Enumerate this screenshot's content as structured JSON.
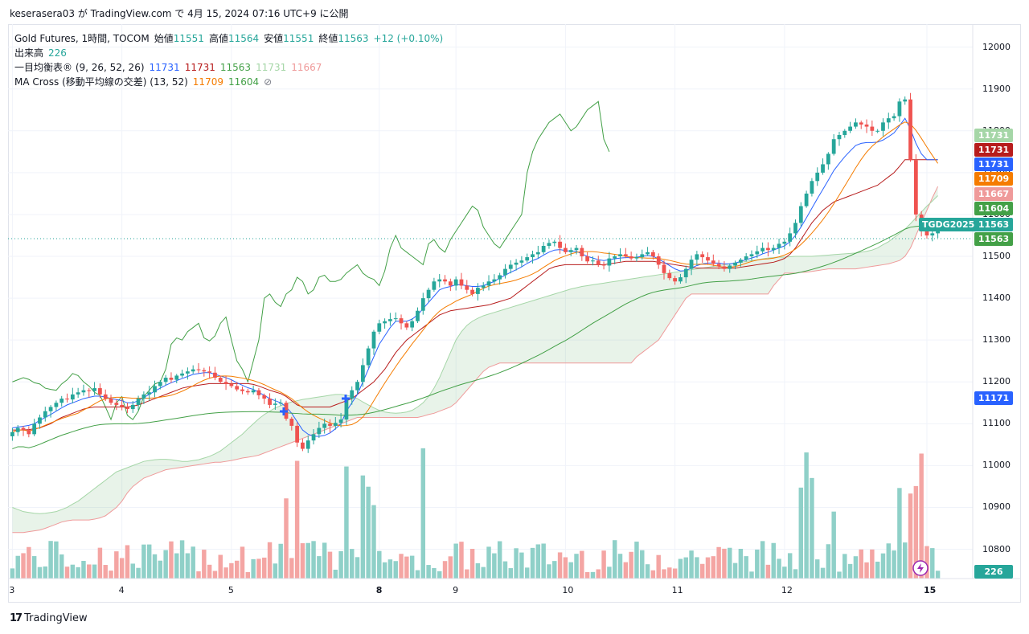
{
  "header": {
    "text": "keserasera03 が TradingView.com で 4月 15, 2024 07:16 UTC+9 に公開"
  },
  "legend": {
    "symbol": "Gold Futures, 1時間, TOCOM",
    "open_label": "始値",
    "open": "11551",
    "high_label": "高値",
    "high": "11564",
    "low_label": "安値",
    "low": "11551",
    "close_label": "終値",
    "close": "11563",
    "change": "+12 (+0.10%)",
    "volume_label": "出来高",
    "volume": "226",
    "ichimoku_label": "一目均衡表® (9, 26, 52, 26)",
    "ichimoku_values": [
      "11731",
      "11731",
      "11563",
      "11731",
      "11667"
    ],
    "ma_label": "MA Cross (移動平均線の交差) (13, 52)",
    "ma_values": [
      "11709",
      "11604"
    ],
    "ma_icon": "⊘"
  },
  "price_tags": [
    {
      "value": "11731",
      "color": "#a5d6a7",
      "name": "chikou-span"
    },
    {
      "value": "11731",
      "color": "#b71c1c",
      "name": "kijun-sen"
    },
    {
      "value": "11731",
      "color": "#2962ff",
      "name": "tenkan-sen"
    },
    {
      "value": "11709",
      "color": "#f57c00",
      "name": "ma-fast"
    },
    {
      "value": "11667",
      "color": "#ef9a9a",
      "name": "senkou-span-b"
    },
    {
      "value": "11604",
      "color": "#43a047",
      "name": "ma-slow"
    },
    {
      "value": "11563",
      "color": "#26a69a",
      "name": "last-price"
    },
    {
      "value": "11563",
      "color": "#43a047",
      "name": "senkou-span-a"
    },
    {
      "value": "11171",
      "color": "#2962ff",
      "name": "cross-marker"
    }
  ],
  "volume_tag": "226",
  "symbol_label": "TGDG2025",
  "footer": {
    "brand": "TradingView",
    "logo_icon": "17"
  },
  "colors": {
    "up": "#26a69a",
    "down": "#ef5350",
    "vol_up": "#8fd0c8",
    "vol_down": "#f4a5a3",
    "tenkan": "#2962ff",
    "kijun": "#b71c1c",
    "span_a": "#43a047",
    "span_b": "#ef9a9a",
    "chikou": "#43a047",
    "ma_fast": "#f57c00",
    "ma_slow": "#43a047"
  },
  "chart_data": {
    "type": "candlestick",
    "title": "Gold Futures, 1時間, TOCOM",
    "y_ticks": [
      12000,
      11900,
      11800,
      11700,
      11600,
      11500,
      11400,
      11300,
      11200,
      11100,
      11000,
      10900,
      10800
    ],
    "ylim": [
      10730,
      12055
    ],
    "x_tick_labels": [
      "3",
      "4",
      "5",
      "8",
      "9",
      "10",
      "11",
      "12",
      "15"
    ],
    "x_tick_bar_index": [
      0,
      20,
      40,
      67,
      81,
      101,
      121,
      141,
      167
    ],
    "bar_count": 170,
    "grid": true,
    "close": [
      11080,
      11090,
      11085,
      11075,
      11100,
      11115,
      11130,
      11140,
      11150,
      11160,
      11158,
      11170,
      11175,
      11180,
      11178,
      11185,
      11170,
      11160,
      11150,
      11145,
      11140,
      11135,
      11145,
      11160,
      11170,
      11175,
      11190,
      11200,
      11210,
      11205,
      11215,
      11220,
      11225,
      11230,
      11228,
      11225,
      11222,
      11210,
      11200,
      11195,
      11190,
      11182,
      11178,
      11175,
      11180,
      11168,
      11160,
      11145,
      11148,
      11150,
      11112,
      11095,
      11055,
      11040,
      11060,
      11075,
      11090,
      11100,
      11095,
      11102,
      11110,
      11160,
      11180,
      11200,
      11240,
      11280,
      11320,
      11340,
      11345,
      11350,
      11352,
      11340,
      11330,
      11345,
      11370,
      11400,
      11420,
      11440,
      11445,
      11440,
      11430,
      11445,
      11430,
      11420,
      11410,
      11425,
      11430,
      11440,
      11445,
      11455,
      11470,
      11480,
      11485,
      11490,
      11498,
      11505,
      11510,
      11525,
      11532,
      11535,
      11520,
      11510,
      11515,
      11520,
      11500,
      11488,
      11490,
      11480,
      11478,
      11495,
      11500,
      11505,
      11500,
      11495,
      11498,
      11505,
      11510,
      11500,
      11480,
      11460,
      11448,
      11440,
      11450,
      11470,
      11492,
      11505,
      11498,
      11490,
      11482,
      11476,
      11470,
      11478,
      11485,
      11492,
      11500,
      11505,
      11512,
      11520,
      11515,
      11520,
      11530,
      11535,
      11555,
      11580,
      11620,
      11650,
      11680,
      11700,
      11720,
      11745,
      11780,
      11790,
      11800,
      11810,
      11820,
      11815,
      11810,
      11800,
      11800,
      11820,
      11830,
      11835,
      11870,
      11875,
      11730,
      11600,
      11560,
      11550,
      11555,
      11563
    ],
    "tenkan": [
      11090,
      11092,
      11094,
      11096,
      11100,
      11108,
      11115,
      11122,
      11130,
      11138,
      11145,
      11150,
      11155,
      11160,
      11163,
      11166,
      11166,
      11164,
      11160,
      11158,
      11155,
      11150,
      11150,
      11155,
      11163,
      11170,
      11178,
      11185,
      11192,
      11198,
      11203,
      11208,
      11213,
      11218,
      11220,
      11222,
      11222,
      11218,
      11214,
      11210,
      11205,
      11198,
      11192,
      11186,
      11182,
      11175,
      11168,
      11160,
      11155,
      11150,
      11140,
      11125,
      11105,
      11085,
      11075,
      11070,
      11070,
      11072,
      11078,
      11088,
      11100,
      11130,
      11150,
      11170,
      11200,
      11230,
      11260,
      11290,
      11310,
      11330,
      11345,
      11345,
      11345,
      11350,
      11360,
      11375,
      11390,
      11405,
      11420,
      11425,
      11428,
      11432,
      11432,
      11430,
      11428,
      11428,
      11430,
      11435,
      11440,
      11448,
      11455,
      11462,
      11468,
      11475,
      11483,
      11490,
      11495,
      11503,
      11510,
      11515,
      11516,
      11514,
      11512,
      11512,
      11506,
      11500,
      11496,
      11492,
      11490,
      11492,
      11494,
      11496,
      11497,
      11497,
      11498,
      11500,
      11502,
      11500,
      11494,
      11486,
      11478,
      11470,
      11465,
      11466,
      11472,
      11478,
      11482,
      11484,
      11484,
      11484,
      11482,
      11482,
      11484,
      11488,
      11492,
      11496,
      11500,
      11506,
      11510,
      11515,
      11520,
      11525,
      11535,
      11550,
      11570,
      11592,
      11615,
      11638,
      11660,
      11682,
      11705,
      11722,
      11738,
      11752,
      11765,
      11770,
      11772,
      11772,
      11773,
      11778,
      11786,
      11795,
      11812,
      11830,
      11804,
      11770,
      11745,
      11731,
      11731,
      11731
    ],
    "kijun": [
      11085,
      11085,
      11085,
      11086,
      11088,
      11090,
      11095,
      11100,
      11108,
      11115,
      11120,
      11125,
      11130,
      11135,
      11138,
      11140,
      11140,
      11140,
      11140,
      11140,
      11140,
      11140,
      11142,
      11145,
      11150,
      11155,
      11160,
      11165,
      11170,
      11175,
      11180,
      11185,
      11188,
      11190,
      11192,
      11194,
      11196,
      11196,
      11196,
      11196,
      11196,
      11196,
      11196,
      11196,
      11194,
      11190,
      11185,
      11180,
      11176,
      11172,
      11165,
      11155,
      11145,
      11140,
      11140,
      11140,
      11140,
      11140,
      11140,
      11145,
      11150,
      11155,
      11160,
      11170,
      11180,
      11190,
      11200,
      11215,
      11230,
      11250,
      11270,
      11285,
      11300,
      11310,
      11320,
      11330,
      11340,
      11350,
      11360,
      11365,
      11370,
      11372,
      11374,
      11376,
      11378,
      11380,
      11382,
      11384,
      11388,
      11392,
      11396,
      11400,
      11410,
      11420,
      11430,
      11440,
      11450,
      11460,
      11470,
      11475,
      11478,
      11480,
      11480,
      11480,
      11480,
      11480,
      11480,
      11480,
      11480,
      11482,
      11484,
      11486,
      11488,
      11488,
      11488,
      11488,
      11488,
      11488,
      11486,
      11484,
      11482,
      11480,
      11478,
      11476,
      11474,
      11472,
      11472,
      11472,
      11472,
      11472,
      11472,
      11472,
      11472,
      11474,
      11476,
      11478,
      11480,
      11482,
      11484,
      11486,
      11490,
      11495,
      11505,
      11520,
      11540,
      11560,
      11580,
      11595,
      11610,
      11620,
      11630,
      11635,
      11640,
      11645,
      11650,
      11655,
      11660,
      11665,
      11670,
      11680,
      11690,
      11700,
      11715,
      11731,
      11731,
      11731,
      11731,
      11731,
      11731,
      11731
    ],
    "span_a": [
      10900,
      10895,
      10890,
      10888,
      10886,
      10885,
      10886,
      10888,
      10890,
      10895,
      10900,
      10908,
      10915,
      10925,
      10935,
      10945,
      10955,
      10965,
      10975,
      10985,
      10990,
      10995,
      11000,
      11005,
      11010,
      11012,
      11014,
      11015,
      11015,
      11014,
      11012,
      11010,
      11010,
      11012,
      11014,
      11018,
      11022,
      11028,
      11035,
      11045,
      11055,
      11065,
      11075,
      11088,
      11100,
      11112,
      11122,
      11130,
      11138,
      11143,
      11148,
      11152,
      11155,
      11158,
      11160,
      11162,
      11164,
      11166,
      11168,
      11170,
      11170,
      11168,
      11165,
      11160,
      11152,
      11145,
      11138,
      11132,
      11128,
      11126,
      11125,
      11126,
      11128,
      11132,
      11140,
      11150,
      11165,
      11185,
      11210,
      11240,
      11270,
      11300,
      11320,
      11335,
      11345,
      11352,
      11358,
      11362,
      11366,
      11370,
      11374,
      11378,
      11382,
      11386,
      11390,
      11394,
      11398,
      11402,
      11406,
      11410,
      11414,
      11418,
      11422,
      11425,
      11428,
      11430,
      11432,
      11434,
      11436,
      11438,
      11440,
      11442,
      11444,
      11446,
      11448,
      11450,
      11452,
      11454,
      11456,
      11458,
      11460,
      11462,
      11464,
      11466,
      11468,
      11470,
      11472,
      11474,
      11476,
      11478,
      11480,
      11482,
      11484,
      11486,
      11488,
      11490,
      11492,
      11494,
      11496,
      11497,
      11498,
      11498,
      11499,
      11500,
      11500,
      11500,
      11500,
      11501,
      11502,
      11503,
      11504,
      11505,
      11506,
      11507,
      11508,
      11510,
      11512,
      11515,
      11520,
      11528,
      11535,
      11545,
      11555,
      11565,
      11578,
      11592,
      11606,
      11620,
      11632,
      11645
    ],
    "span_b": [
      10840,
      10840,
      10840,
      10842,
      10844,
      10846,
      10850,
      10855,
      10860,
      10865,
      10868,
      10870,
      10870,
      10870,
      10870,
      10872,
      10875,
      10880,
      10890,
      10900,
      10915,
      10935,
      10950,
      10960,
      10970,
      10975,
      10980,
      10985,
      10990,
      10992,
      10994,
      10996,
      10998,
      11000,
      11002,
      11004,
      11006,
      11008,
      11008,
      11010,
      11012,
      11015,
      11018,
      11020,
      11022,
      11025,
      11030,
      11035,
      11040,
      11045,
      11050,
      11055,
      11060,
      11065,
      11070,
      11075,
      11080,
      11085,
      11090,
      11095,
      11100,
      11105,
      11110,
      11115,
      11115,
      11115,
      11115,
      11115,
      11115,
      11115,
      11115,
      11115,
      11115,
      11115,
      11115,
      11118,
      11122,
      11125,
      11130,
      11135,
      11140,
      11150,
      11165,
      11180,
      11195,
      11210,
      11225,
      11235,
      11240,
      11245,
      11245,
      11245,
      11245,
      11245,
      11245,
      11245,
      11245,
      11245,
      11245,
      11245,
      11245,
      11245,
      11245,
      11245,
      11245,
      11245,
      11245,
      11245,
      11245,
      11245,
      11245,
      11245,
      11245,
      11245,
      11260,
      11270,
      11280,
      11290,
      11300,
      11320,
      11340,
      11360,
      11380,
      11400,
      11410,
      11410,
      11410,
      11410,
      11410,
      11410,
      11410,
      11410,
      11410,
      11410,
      11410,
      11410,
      11410,
      11410,
      11410,
      11430,
      11445,
      11460,
      11460,
      11460,
      11462,
      11462,
      11464,
      11466,
      11468,
      11470,
      11470,
      11470,
      11470,
      11470,
      11470,
      11472,
      11474,
      11476,
      11478,
      11480,
      11482,
      11486,
      11490,
      11500,
      11520,
      11550,
      11580,
      11610,
      11640,
      11667
    ],
    "chikou": [
      11200,
      11205,
      11210,
      11206,
      11198,
      11195,
      11185,
      11182,
      11180,
      11195,
      11205,
      11220,
      11215,
      11200,
      11190,
      11175,
      11168,
      11140,
      11110,
      11150,
      11165,
      11120,
      11110,
      11130,
      11165,
      11180,
      11195,
      11200,
      11230,
      11290,
      11305,
      11300,
      11320,
      11330,
      11340,
      11305,
      11298,
      11310,
      11340,
      11355,
      11300,
      11250,
      11230,
      11200,
      11250,
      11300,
      11400,
      11410,
      11390,
      11380,
      11410,
      11420,
      11450,
      11440,
      11410,
      11420,
      11450,
      11455,
      11440,
      11440,
      11445,
      11460,
      11470,
      11480,
      11460,
      11450,
      11445,
      11430,
      11465,
      11520,
      11550,
      11520,
      11510,
      11500,
      11490,
      11480,
      11530,
      11540,
      11520,
      11510,
      11540,
      11560,
      11580,
      11600,
      11620,
      11610,
      11570,
      11550,
      11530,
      11520,
      11540,
      11560,
      11580,
      11600,
      11700,
      11750,
      11780,
      11800,
      11820,
      11830,
      11840,
      11820,
      11800,
      11810,
      11830,
      11850,
      11860,
      11870,
      11780,
      11750
    ]
  }
}
